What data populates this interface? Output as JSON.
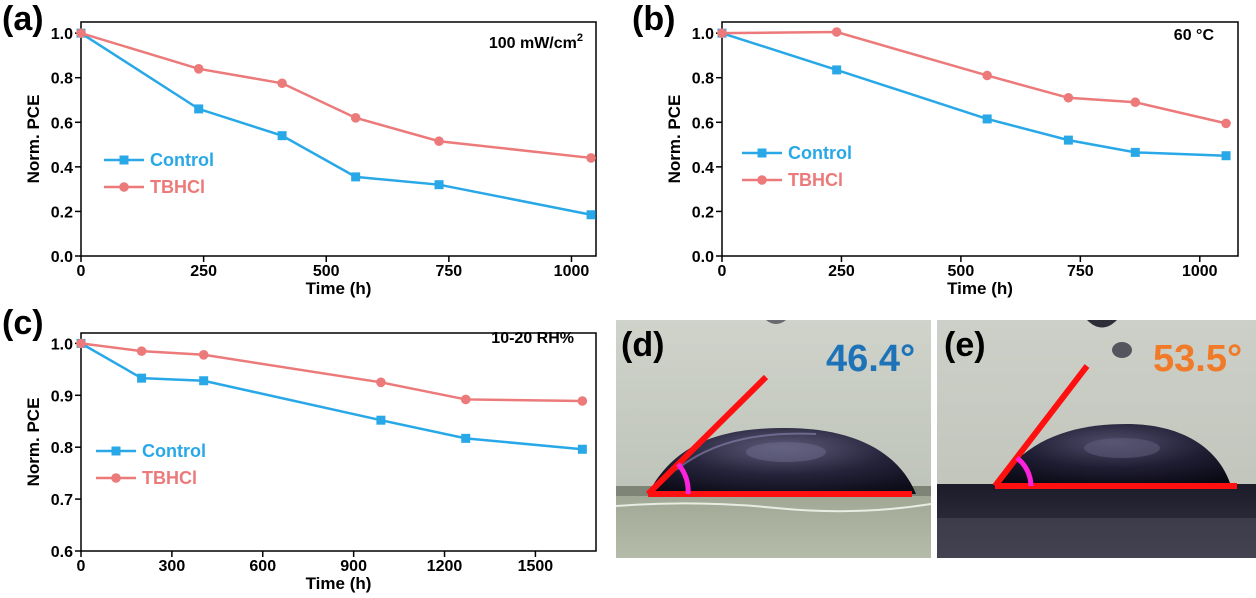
{
  "colors": {
    "control": "#29a8e8",
    "tbhcl": "#ec7a7a",
    "axis": "#000000",
    "angle_d": "#1e73b8",
    "angle_e": "#f07a28",
    "line_red": "#ff1010",
    "arc_magenta": "#ff22dd"
  },
  "panels": {
    "a": {
      "letter": "(a)"
    },
    "b": {
      "letter": "(b)"
    },
    "c": {
      "letter": "(c)"
    },
    "d": {
      "letter": "(d)",
      "angle": "46.4°"
    },
    "e": {
      "letter": "(e)",
      "angle": "53.5°"
    }
  },
  "chart_data": [
    {
      "id": "a",
      "type": "line",
      "annotation": "100 mW/cm²",
      "xlabel": "Time (h)",
      "ylabel": "Norm. PCE",
      "xlim": [
        0,
        1050
      ],
      "ylim": [
        0,
        1.05
      ],
      "xticks": [
        0,
        250,
        500,
        750,
        1000
      ],
      "xtick_labels": [
        "0",
        "250",
        "500",
        "750",
        "1000"
      ],
      "yticks": [
        0,
        0.2,
        0.4,
        0.6,
        0.8,
        1.0
      ],
      "ytick_labels": [
        "0.0",
        "0.2",
        "0.4",
        "0.6",
        "0.8",
        "1.0"
      ],
      "legend_position": "middle-left",
      "series": [
        {
          "name": "Control",
          "marker": "square",
          "color_key": "control",
          "x": [
            0,
            240,
            410,
            560,
            730,
            1040
          ],
          "y": [
            1.0,
            0.66,
            0.54,
            0.355,
            0.32,
            0.185
          ]
        },
        {
          "name": "TBHCl",
          "marker": "circle",
          "color_key": "tbhcl",
          "x": [
            0,
            240,
            410,
            560,
            730,
            1040
          ],
          "y": [
            1.0,
            0.84,
            0.775,
            0.62,
            0.515,
            0.44
          ]
        }
      ]
    },
    {
      "id": "b",
      "type": "line",
      "annotation": "60 °C",
      "xlabel": "Time (h)",
      "ylabel": "Norm. PCE",
      "xlim": [
        0,
        1080
      ],
      "ylim": [
        0,
        1.05
      ],
      "xticks": [
        0,
        250,
        500,
        750,
        1000
      ],
      "xtick_labels": [
        "0",
        "250",
        "500",
        "750",
        "1000"
      ],
      "yticks": [
        0,
        0.2,
        0.4,
        0.6,
        0.8,
        1.0
      ],
      "ytick_labels": [
        "0.0",
        "0.2",
        "0.4",
        "0.6",
        "0.8",
        "1.0"
      ],
      "legend_position": "middle-left",
      "series": [
        {
          "name": "Control",
          "marker": "square",
          "color_key": "control",
          "x": [
            0,
            240,
            555,
            725,
            865,
            1055
          ],
          "y": [
            1.0,
            0.835,
            0.615,
            0.52,
            0.465,
            0.45
          ]
        },
        {
          "name": "TBHCl",
          "marker": "circle",
          "color_key": "tbhcl",
          "x": [
            0,
            240,
            555,
            725,
            865,
            1055
          ],
          "y": [
            1.0,
            1.005,
            0.81,
            0.71,
            0.69,
            0.595
          ]
        }
      ]
    },
    {
      "id": "c",
      "type": "line",
      "annotation": "10-20 RH%",
      "xlabel": "Time (h)",
      "ylabel": "Norm. PCE",
      "xlim": [
        0,
        1700
      ],
      "ylim": [
        0.6,
        1.02
      ],
      "xticks": [
        0,
        300,
        600,
        900,
        1200,
        1500
      ],
      "xtick_labels": [
        "0",
        "300",
        "600",
        "900",
        "1200",
        "1500"
      ],
      "yticks": [
        0.6,
        0.7,
        0.8,
        0.9,
        1.0
      ],
      "ytick_labels": [
        "0.6",
        "0.7",
        "0.8",
        "0.9",
        "1.0"
      ],
      "legend_position": "lower-left",
      "series": [
        {
          "name": "Control",
          "marker": "square",
          "color_key": "control",
          "x": [
            0,
            200,
            405,
            990,
            1270,
            1655
          ],
          "y": [
            1.0,
            0.933,
            0.928,
            0.852,
            0.817,
            0.796
          ]
        },
        {
          "name": "TBHCl",
          "marker": "circle",
          "color_key": "tbhcl",
          "x": [
            0,
            200,
            405,
            990,
            1270,
            1655
          ],
          "y": [
            1.0,
            0.985,
            0.978,
            0.925,
            0.892,
            0.889
          ]
        }
      ]
    }
  ]
}
